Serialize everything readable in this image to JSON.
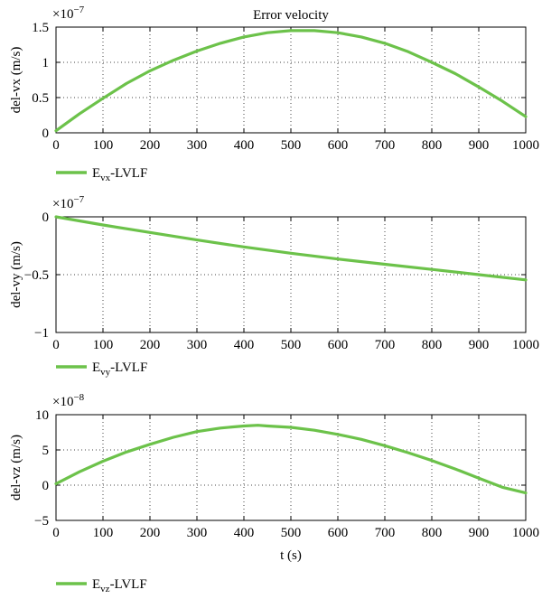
{
  "colors": {
    "series": "#6cc24a",
    "axis": "#000000"
  },
  "chart_data": [
    {
      "type": "line",
      "title": "Error velocity",
      "xlabel": "",
      "ylabel": "del-vx (m/s)",
      "exponent_base": "×10",
      "exponent_power": "−7",
      "xlim": [
        0,
        1000
      ],
      "ylim": [
        0,
        1.5
      ],
      "xticks": [
        0,
        100,
        200,
        300,
        400,
        500,
        600,
        700,
        800,
        900,
        1000
      ],
      "xtick_labels": [
        "0",
        "100",
        "200",
        "300",
        "400",
        "500",
        "600",
        "700",
        "800",
        "900",
        "1000"
      ],
      "yticks": [
        0,
        0.5,
        1,
        1.5
      ],
      "ytick_labels": [
        "0",
        "0.5",
        "1",
        "1.5"
      ],
      "grid": true,
      "legend_placement": "below",
      "series": [
        {
          "name": "Evx-LVLF",
          "legend_main": "E",
          "legend_sub": "vx",
          "legend_suffix": "-LVLF",
          "x": [
            0,
            50,
            100,
            150,
            200,
            250,
            300,
            350,
            400,
            450,
            500,
            550,
            600,
            650,
            700,
            750,
            800,
            850,
            900,
            950,
            1000
          ],
          "values": [
            0.03,
            0.27,
            0.49,
            0.7,
            0.88,
            1.03,
            1.16,
            1.27,
            1.36,
            1.42,
            1.45,
            1.45,
            1.42,
            1.36,
            1.27,
            1.15,
            1.0,
            0.84,
            0.65,
            0.45,
            0.23
          ]
        }
      ]
    },
    {
      "type": "line",
      "title": "",
      "xlabel": "",
      "ylabel": "del-vy (m/s)",
      "exponent_base": "×10",
      "exponent_power": "−7",
      "xlim": [
        0,
        1000
      ],
      "ylim": [
        -1,
        0
      ],
      "xticks": [
        0,
        100,
        200,
        300,
        400,
        500,
        600,
        700,
        800,
        900,
        1000
      ],
      "xtick_labels": [
        "0",
        "100",
        "200",
        "300",
        "400",
        "500",
        "600",
        "700",
        "800",
        "900",
        "1000"
      ],
      "yticks": [
        -1,
        -0.5,
        0
      ],
      "ytick_labels": [
        "−1",
        "−0.5",
        "0"
      ],
      "grid": true,
      "legend_placement": "below",
      "series": [
        {
          "name": "Evy-LVLF",
          "legend_main": "E",
          "legend_sub": "vy",
          "legend_suffix": "-LVLF",
          "x": [
            0,
            100,
            200,
            300,
            400,
            500,
            600,
            700,
            800,
            900,
            1000
          ],
          "values": [
            0,
            -0.07,
            -0.135,
            -0.2,
            -0.26,
            -0.315,
            -0.365,
            -0.41,
            -0.455,
            -0.5,
            -0.545
          ]
        }
      ]
    },
    {
      "type": "line",
      "title": "",
      "xlabel": "t (s)",
      "ylabel": "del-vz (m/s)",
      "exponent_base": "×10",
      "exponent_power": "−8",
      "xlim": [
        0,
        1000
      ],
      "ylim": [
        -5,
        10
      ],
      "xticks": [
        0,
        100,
        200,
        300,
        400,
        500,
        600,
        700,
        800,
        900,
        1000
      ],
      "xtick_labels": [
        "0",
        "100",
        "200",
        "300",
        "400",
        "500",
        "600",
        "700",
        "800",
        "900",
        "1000"
      ],
      "yticks": [
        -5,
        0,
        5,
        10
      ],
      "ytick_labels": [
        "−5",
        "0",
        "5",
        "10"
      ],
      "grid": true,
      "legend_placement": "below",
      "series": [
        {
          "name": "Evz-LVLF",
          "legend_main": "E",
          "legend_sub": "vz",
          "legend_suffix": "-LVLF",
          "x": [
            0,
            50,
            100,
            150,
            200,
            250,
            300,
            350,
            400,
            430,
            450,
            500,
            550,
            600,
            650,
            700,
            750,
            800,
            850,
            900,
            950,
            1000
          ],
          "values": [
            0.2,
            1.9,
            3.4,
            4.7,
            5.8,
            6.8,
            7.6,
            8.1,
            8.4,
            8.5,
            8.4,
            8.2,
            7.8,
            7.2,
            6.5,
            5.6,
            4.6,
            3.5,
            2.3,
            1.0,
            -0.3,
            -1.1
          ]
        }
      ]
    }
  ]
}
